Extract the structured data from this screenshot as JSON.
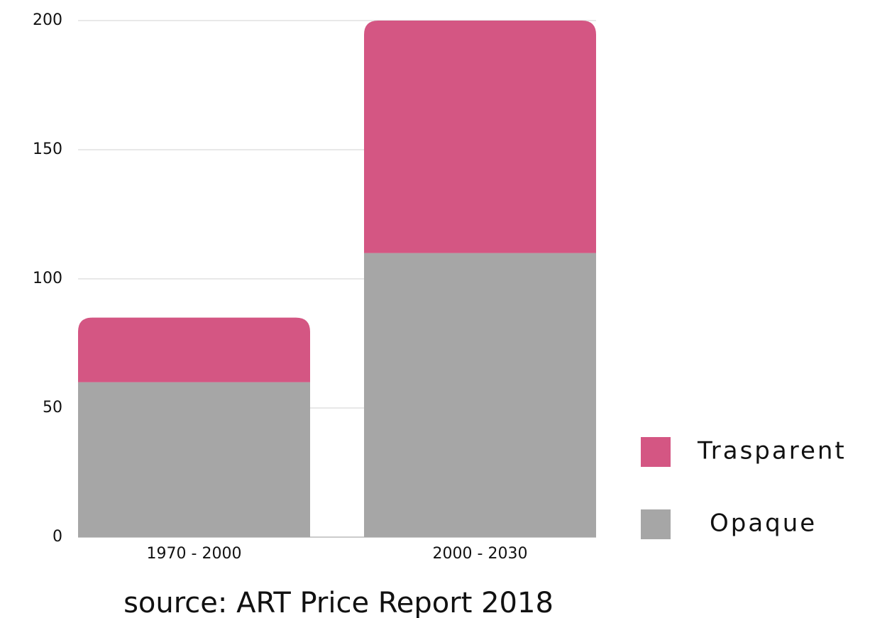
{
  "chart_data": {
    "type": "stacked_bar",
    "caption": "source: ART Price Report  2018",
    "categories": [
      "1970 - 2000",
      "2000 - 2030"
    ],
    "series": [
      {
        "name": "Opaque",
        "color": "#a6a6a6",
        "values": [
          60,
          110
        ]
      },
      {
        "name": "Trasparent",
        "color": "#d45683",
        "values": [
          25,
          90
        ]
      }
    ],
    "ylim": [
      0,
      200
    ],
    "yticks": [
      0,
      50,
      100,
      150,
      200
    ],
    "grid": true,
    "legend": "right"
  }
}
